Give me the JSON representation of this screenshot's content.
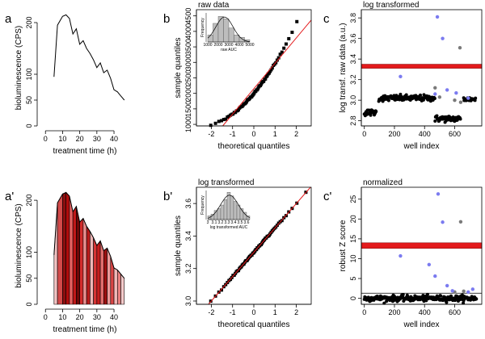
{
  "chart_data": [
    {
      "id": "a",
      "panel_label": "a",
      "type": "line",
      "xlabel": "treatment time (h)",
      "ylabel": "bioluminescence (CPS)",
      "title": "",
      "xlim": [
        -2,
        48
      ],
      "ylim": [
        0,
        225
      ],
      "xticks": [
        0,
        10,
        20,
        30,
        40
      ],
      "yticks": [
        0,
        50,
        100,
        200
      ],
      "x": [
        5,
        7,
        10,
        12,
        14,
        16,
        18,
        20,
        22,
        24,
        26,
        28,
        30,
        32,
        34,
        36,
        38,
        40,
        42,
        44,
        46
      ],
      "y": [
        95,
        195,
        212,
        215,
        208,
        178,
        188,
        158,
        165,
        150,
        140,
        128,
        113,
        122,
        103,
        108,
        92,
        70,
        66,
        58,
        50
      ]
    },
    {
      "id": "a2",
      "panel_label": "a'",
      "type": "area",
      "xlabel": "treatment time (h)",
      "ylabel": "bioluminescence (CPS)",
      "title": "",
      "xlim": [
        -2,
        48
      ],
      "ylim": [
        0,
        225
      ],
      "xticks": [
        0,
        10,
        20,
        30,
        40
      ],
      "yticks": [
        0,
        50,
        100,
        200
      ],
      "x": [
        5,
        7,
        10,
        12,
        14,
        16,
        18,
        20,
        22,
        24,
        26,
        28,
        30,
        32,
        34,
        36,
        38,
        40,
        42,
        44,
        46
      ],
      "y": [
        95,
        195,
        212,
        215,
        208,
        178,
        188,
        158,
        165,
        150,
        140,
        128,
        113,
        122,
        103,
        108,
        92,
        70,
        66,
        58,
        50
      ],
      "segment_colors": [
        "#f3c4c4",
        "#d24a4a",
        "#8b0f0f",
        "#b00d0d",
        "#e56161",
        "#c01818",
        "#6e0808",
        "#d42a2a",
        "#e98f8f",
        "#b81a1a",
        "#f0b5b5",
        "#d53434",
        "#c51d1d",
        "#e16f6f",
        "#9a1010",
        "#eb9a9a",
        "#d94545",
        "#f2b9b9",
        "#e98080",
        "#f5caca"
      ]
    },
    {
      "id": "b",
      "panel_label": "b",
      "type": "scatter",
      "title": "raw data",
      "xlabel": "theoretical quantiles",
      "ylabel": "sample quantiles",
      "xlim": [
        -2.7,
        2.7
      ],
      "ylim": [
        950,
        4700
      ],
      "xticks": [
        -2,
        -1,
        0,
        1,
        2
      ],
      "yticks": [
        1000,
        1500,
        2000,
        2500,
        3000,
        3500,
        4000,
        4500
      ],
      "qq": {
        "mean": 2150,
        "sd": 820,
        "skew": 0.55,
        "n": 70
      },
      "reference_line": {
        "intercept": 2150,
        "slope": 820
      },
      "inset": {
        "type": "histogram",
        "xlabel": "raw AUC",
        "ylabel": "Frequency",
        "xticks": [
          1000,
          2000,
          3000,
          4000,
          5000
        ],
        "bins": [
          1000,
          1500,
          2000,
          2500,
          3000,
          3500,
          4000,
          4500,
          5000
        ],
        "counts": [
          6,
          16,
          22,
          20,
          12,
          6,
          4,
          2
        ],
        "ylim": [
          0,
          25
        ]
      }
    },
    {
      "id": "b2",
      "panel_label": "b'",
      "type": "scatter",
      "title": "log transformed",
      "xlabel": "theoretical quantiles",
      "ylabel": "sample quantiles",
      "xlim": [
        -2.7,
        2.7
      ],
      "ylim": [
        2.98,
        3.7
      ],
      "xticks": [
        -2,
        -1,
        0,
        1,
        2
      ],
      "yticks": [
        3.0,
        3.2,
        3.4,
        3.6
      ],
      "qq": {
        "mean": 3.3,
        "sd": 0.15,
        "skew": 0.0,
        "n": 70
      },
      "reference_line": {
        "intercept": 3.3,
        "slope": 0.15
      },
      "inset": {
        "type": "histogram",
        "xlabel": "log transformed AUC",
        "ylabel": "Frequency",
        "xticks": [
          3.0,
          3.1,
          3.2,
          3.3,
          3.4,
          3.5,
          3.6,
          3.7
        ],
        "bins": [
          3.0,
          3.05,
          3.1,
          3.15,
          3.2,
          3.25,
          3.3,
          3.35,
          3.4,
          3.45,
          3.5,
          3.55,
          3.6,
          3.65
        ],
        "counts": [
          2,
          3,
          5,
          6,
          8,
          11,
          15,
          13,
          10,
          8,
          6,
          4,
          2
        ],
        "ylim": [
          0,
          16
        ]
      }
    },
    {
      "id": "c",
      "panel_label": "c",
      "type": "scatter",
      "title": "log transformed",
      "xlabel": "well index",
      "ylabel": "log transf. raw data (a.u.)",
      "xlim": [
        -20,
        780
      ],
      "ylim": [
        2.75,
        3.88
      ],
      "xticks": [
        0,
        200,
        400,
        600
      ],
      "yticks": [
        2.8,
        3.0,
        3.2,
        3.4,
        3.6,
        3.8
      ],
      "threshold_band": [
        3.31,
        3.35
      ],
      "groups": [
        {
          "x_start": 0,
          "x_end": 80,
          "level": 2.88,
          "jitter": 0.015
        },
        {
          "x_start": 96,
          "x_end": 470,
          "level": 3.02,
          "jitter": 0.015
        },
        {
          "x_start": 470,
          "x_end": 640,
          "level": 2.82,
          "jitter": 0.015
        },
        {
          "x_start": 660,
          "x_end": 740,
          "level": 3.01,
          "jitter": 0.012
        }
      ],
      "outliers_blue": [
        [
          240,
          3.23
        ],
        [
          470,
          3.06
        ],
        [
          485,
          3.81
        ],
        [
          520,
          3.6
        ],
        [
          550,
          3.1
        ],
        [
          610,
          3.07
        ],
        [
          690,
          3.02
        ]
      ],
      "outliers_grey": [
        [
          470,
          3.12
        ],
        [
          500,
          3.03
        ],
        [
          600,
          3.0
        ],
        [
          635,
          3.51
        ],
        [
          640,
          2.98
        ]
      ]
    },
    {
      "id": "c2",
      "panel_label": "c'",
      "type": "scatter",
      "title": "normalized",
      "xlabel": "well index",
      "ylabel": "robust Z score",
      "xlim": [
        -20,
        780
      ],
      "ylim": [
        -1.5,
        28
      ],
      "xticks": [
        0,
        200,
        400,
        600
      ],
      "yticks": [
        0,
        5,
        10,
        15,
        20,
        25
      ],
      "threshold_band": [
        12.6,
        14.0
      ],
      "baseline": 1.3,
      "groups": [
        {
          "x_start": 0,
          "x_end": 745,
          "level": 0,
          "jitter": 0.35
        }
      ],
      "outliers_blue": [
        [
          240,
          10.7
        ],
        [
          430,
          8.5
        ],
        [
          470,
          5.6
        ],
        [
          490,
          26.3
        ],
        [
          520,
          19.2
        ],
        [
          550,
          3.2
        ],
        [
          585,
          1.9
        ],
        [
          690,
          1.6
        ],
        [
          720,
          2.3
        ]
      ],
      "outliers_grey": [
        [
          600,
          1.6
        ],
        [
          640,
          19.3
        ],
        [
          660,
          1.8
        ]
      ]
    }
  ]
}
